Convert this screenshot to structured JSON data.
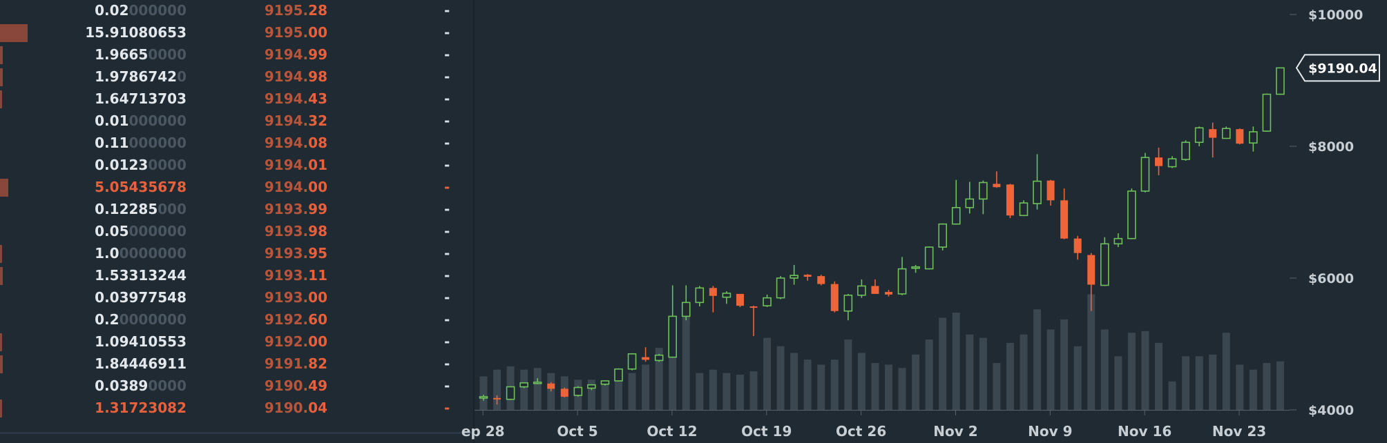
{
  "order_book": {
    "rows": [
      {
        "amount": "0.02",
        "amount_tail": "000000",
        "price_head": "9195.",
        "price_tail": "28",
        "marker": "-",
        "depth": 0,
        "side": "ask"
      },
      {
        "amount": "15.91080653",
        "amount_tail": "",
        "price_head": "9195.",
        "price_tail": "00",
        "marker": "-",
        "depth": 1.0,
        "side": "ask"
      },
      {
        "amount": "1.9665",
        "amount_tail": "0000",
        "price_head": "9194.",
        "price_tail": "99",
        "marker": "-",
        "depth": 0.1,
        "side": "ask"
      },
      {
        "amount": "1.9786742",
        "amount_tail": "0",
        "price_head": "9194.",
        "price_tail": "98",
        "marker": "-",
        "depth": 0.1,
        "side": "ask"
      },
      {
        "amount": "1.64713703",
        "amount_tail": "",
        "price_head": "9194.",
        "price_tail": "43",
        "marker": "-",
        "depth": 0.08,
        "side": "ask"
      },
      {
        "amount": "0.01",
        "amount_tail": "000000",
        "price_head": "9194.",
        "price_tail": "32",
        "marker": "-",
        "depth": 0,
        "side": "ask"
      },
      {
        "amount": "0.11",
        "amount_tail": "000000",
        "price_head": "9194.",
        "price_tail": "08",
        "marker": "-",
        "depth": 0,
        "side": "ask"
      },
      {
        "amount": "0.0123",
        "amount_tail": "0000",
        "price_head": "9194.",
        "price_tail": "01",
        "marker": "-",
        "depth": 0,
        "side": "ask"
      },
      {
        "amount": "5.05435678",
        "amount_tail": "",
        "price_head": "9194.",
        "price_tail": "00",
        "marker": "-",
        "depth": 0.3,
        "side": "sell"
      },
      {
        "amount": "0.12285",
        "amount_tail": "000",
        "price_head": "9193.",
        "price_tail": "99",
        "marker": "-",
        "depth": 0,
        "side": "ask"
      },
      {
        "amount": "0.05",
        "amount_tail": "000000",
        "price_head": "9193.",
        "price_tail": "98",
        "marker": "-",
        "depth": 0,
        "side": "ask"
      },
      {
        "amount": "1.0",
        "amount_tail": "0000000",
        "price_head": "9193.",
        "price_tail": "95",
        "marker": "-",
        "depth": 0.07,
        "side": "ask"
      },
      {
        "amount": "1.53313244",
        "amount_tail": "",
        "price_head": "9193.",
        "price_tail": "11",
        "marker": "-",
        "depth": 0.09,
        "side": "ask"
      },
      {
        "amount": "0.03977548",
        "amount_tail": "",
        "price_head": "9193.",
        "price_tail": "00",
        "marker": "-",
        "depth": 0,
        "side": "ask"
      },
      {
        "amount": "0.2",
        "amount_tail": "0000000",
        "price_head": "9192.",
        "price_tail": "60",
        "marker": "-",
        "depth": 0,
        "side": "ask"
      },
      {
        "amount": "1.09410553",
        "amount_tail": "",
        "price_head": "9192.",
        "price_tail": "00",
        "marker": "-",
        "depth": 0.07,
        "side": "ask"
      },
      {
        "amount": "1.84446911",
        "amount_tail": "",
        "price_head": "9191.",
        "price_tail": "82",
        "marker": "-",
        "depth": 0.1,
        "side": "ask"
      },
      {
        "amount": "0.0389",
        "amount_tail": "0000",
        "price_head": "9190.",
        "price_tail": "49",
        "marker": "-",
        "depth": 0,
        "side": "ask"
      },
      {
        "amount": "1.31723082",
        "amount_tail": "",
        "price_head": "9190.",
        "price_tail": "04",
        "marker": "-",
        "depth": 0.08,
        "side": "sell"
      }
    ]
  },
  "chart_data": {
    "type": "candlestick",
    "x_tick_labels": [
      "ep 28",
      "Oct 5",
      "Oct 12",
      "Oct 19",
      "Oct 26",
      "Nov 2",
      "Nov 9",
      "Nov 16",
      "Nov 23"
    ],
    "y_tick_labels": [
      "$10000",
      "$8000",
      "$6000",
      "$4000"
    ],
    "y_ticks": [
      10000,
      8000,
      6000,
      4000
    ],
    "ylim": [
      4000,
      10000
    ],
    "last_price_label": "$9190.04",
    "last_price": 9190.04,
    "colors": {
      "up": "#6ec05a",
      "down": "#f0643a",
      "volume": "#3a4650",
      "axis_text": "#c7ced4"
    },
    "candles": [
      {
        "o": 4190,
        "h": 4230,
        "l": 4140,
        "c": 4200
      },
      {
        "o": 4180,
        "h": 4220,
        "l": 4080,
        "c": 4160
      },
      {
        "o": 4160,
        "h": 4360,
        "l": 4150,
        "c": 4350
      },
      {
        "o": 4350,
        "h": 4420,
        "l": 4330,
        "c": 4410
      },
      {
        "o": 4400,
        "h": 4480,
        "l": 4390,
        "c": 4420
      },
      {
        "o": 4400,
        "h": 4420,
        "l": 4280,
        "c": 4320
      },
      {
        "o": 4320,
        "h": 4340,
        "l": 4190,
        "c": 4200
      },
      {
        "o": 4220,
        "h": 4360,
        "l": 4200,
        "c": 4340
      },
      {
        "o": 4330,
        "h": 4390,
        "l": 4300,
        "c": 4380
      },
      {
        "o": 4390,
        "h": 4450,
        "l": 4370,
        "c": 4440
      },
      {
        "o": 4440,
        "h": 4630,
        "l": 4430,
        "c": 4620
      },
      {
        "o": 4620,
        "h": 4860,
        "l": 4600,
        "c": 4850
      },
      {
        "o": 4800,
        "h": 4950,
        "l": 4730,
        "c": 4760
      },
      {
        "o": 4750,
        "h": 4850,
        "l": 4730,
        "c": 4830
      },
      {
        "o": 4800,
        "h": 5890,
        "l": 4790,
        "c": 5420
      },
      {
        "o": 5420,
        "h": 5890,
        "l": 5360,
        "c": 5630
      },
      {
        "o": 5630,
        "h": 5880,
        "l": 5570,
        "c": 5850
      },
      {
        "o": 5850,
        "h": 5880,
        "l": 5480,
        "c": 5730
      },
      {
        "o": 5710,
        "h": 5800,
        "l": 5610,
        "c": 5770
      },
      {
        "o": 5760,
        "h": 5760,
        "l": 5560,
        "c": 5580
      },
      {
        "o": 5570,
        "h": 5580,
        "l": 5120,
        "c": 5550
      },
      {
        "o": 5580,
        "h": 5750,
        "l": 5560,
        "c": 5700
      },
      {
        "o": 5700,
        "h": 6030,
        "l": 5680,
        "c": 6000
      },
      {
        "o": 6000,
        "h": 6200,
        "l": 5900,
        "c": 6040
      },
      {
        "o": 6050,
        "h": 6060,
        "l": 5960,
        "c": 6020
      },
      {
        "o": 6030,
        "h": 6050,
        "l": 5890,
        "c": 5910
      },
      {
        "o": 5910,
        "h": 5950,
        "l": 5480,
        "c": 5500
      },
      {
        "o": 5500,
        "h": 5760,
        "l": 5360,
        "c": 5740
      },
      {
        "o": 5740,
        "h": 5980,
        "l": 5700,
        "c": 5880
      },
      {
        "o": 5880,
        "h": 5980,
        "l": 5780,
        "c": 5760
      },
      {
        "o": 5790,
        "h": 5820,
        "l": 5720,
        "c": 5750
      },
      {
        "o": 5760,
        "h": 6320,
        "l": 5740,
        "c": 6140
      },
      {
        "o": 6150,
        "h": 6200,
        "l": 6080,
        "c": 6170
      },
      {
        "o": 6140,
        "h": 6480,
        "l": 6130,
        "c": 6470
      },
      {
        "o": 6470,
        "h": 6830,
        "l": 6420,
        "c": 6820
      },
      {
        "o": 6820,
        "h": 7490,
        "l": 6810,
        "c": 7070
      },
      {
        "o": 7070,
        "h": 7460,
        "l": 6980,
        "c": 7200
      },
      {
        "o": 7200,
        "h": 7480,
        "l": 6970,
        "c": 7450
      },
      {
        "o": 7430,
        "h": 7620,
        "l": 7370,
        "c": 7380
      },
      {
        "o": 7420,
        "h": 7430,
        "l": 6910,
        "c": 6950
      },
      {
        "o": 6950,
        "h": 7180,
        "l": 6940,
        "c": 7140
      },
      {
        "o": 7130,
        "h": 7880,
        "l": 7040,
        "c": 7470
      },
      {
        "o": 7480,
        "h": 7490,
        "l": 7100,
        "c": 7180
      },
      {
        "o": 7180,
        "h": 7360,
        "l": 6590,
        "c": 6600
      },
      {
        "o": 6600,
        "h": 6640,
        "l": 6280,
        "c": 6380
      },
      {
        "o": 6350,
        "h": 6380,
        "l": 5500,
        "c": 5900
      },
      {
        "o": 5890,
        "h": 6620,
        "l": 5880,
        "c": 6520
      },
      {
        "o": 6520,
        "h": 6680,
        "l": 6470,
        "c": 6600
      },
      {
        "o": 6600,
        "h": 7360,
        "l": 6590,
        "c": 7320
      },
      {
        "o": 7320,
        "h": 7900,
        "l": 7300,
        "c": 7830
      },
      {
        "o": 7830,
        "h": 7980,
        "l": 7560,
        "c": 7700
      },
      {
        "o": 7690,
        "h": 7850,
        "l": 7670,
        "c": 7810
      },
      {
        "o": 7800,
        "h": 8090,
        "l": 7780,
        "c": 8060
      },
      {
        "o": 8060,
        "h": 8300,
        "l": 8000,
        "c": 8280
      },
      {
        "o": 8260,
        "h": 8360,
        "l": 7830,
        "c": 8130
      },
      {
        "o": 8120,
        "h": 8300,
        "l": 8120,
        "c": 8270
      },
      {
        "o": 8260,
        "h": 8270,
        "l": 8030,
        "c": 8040
      },
      {
        "o": 8050,
        "h": 8300,
        "l": 7920,
        "c": 8220
      },
      {
        "o": 8230,
        "h": 8800,
        "l": 8220,
        "c": 8790
      },
      {
        "o": 8790,
        "h": 9190,
        "l": 8780,
        "c": 9190
      }
    ],
    "volumes": [
      20,
      24,
      26,
      24,
      25,
      22,
      20,
      18,
      18,
      17,
      19,
      22,
      27,
      37,
      53,
      64,
      22,
      24,
      22,
      21,
      23,
      43,
      38,
      34,
      30,
      27,
      30,
      42,
      34,
      28,
      27,
      25,
      33,
      42,
      55,
      58,
      45,
      43,
      28,
      40,
      45,
      60,
      48,
      54,
      38,
      69,
      48,
      32,
      46,
      47,
      40,
      17,
      32,
      32,
      33,
      46,
      27,
      24,
      28,
      29
    ]
  }
}
